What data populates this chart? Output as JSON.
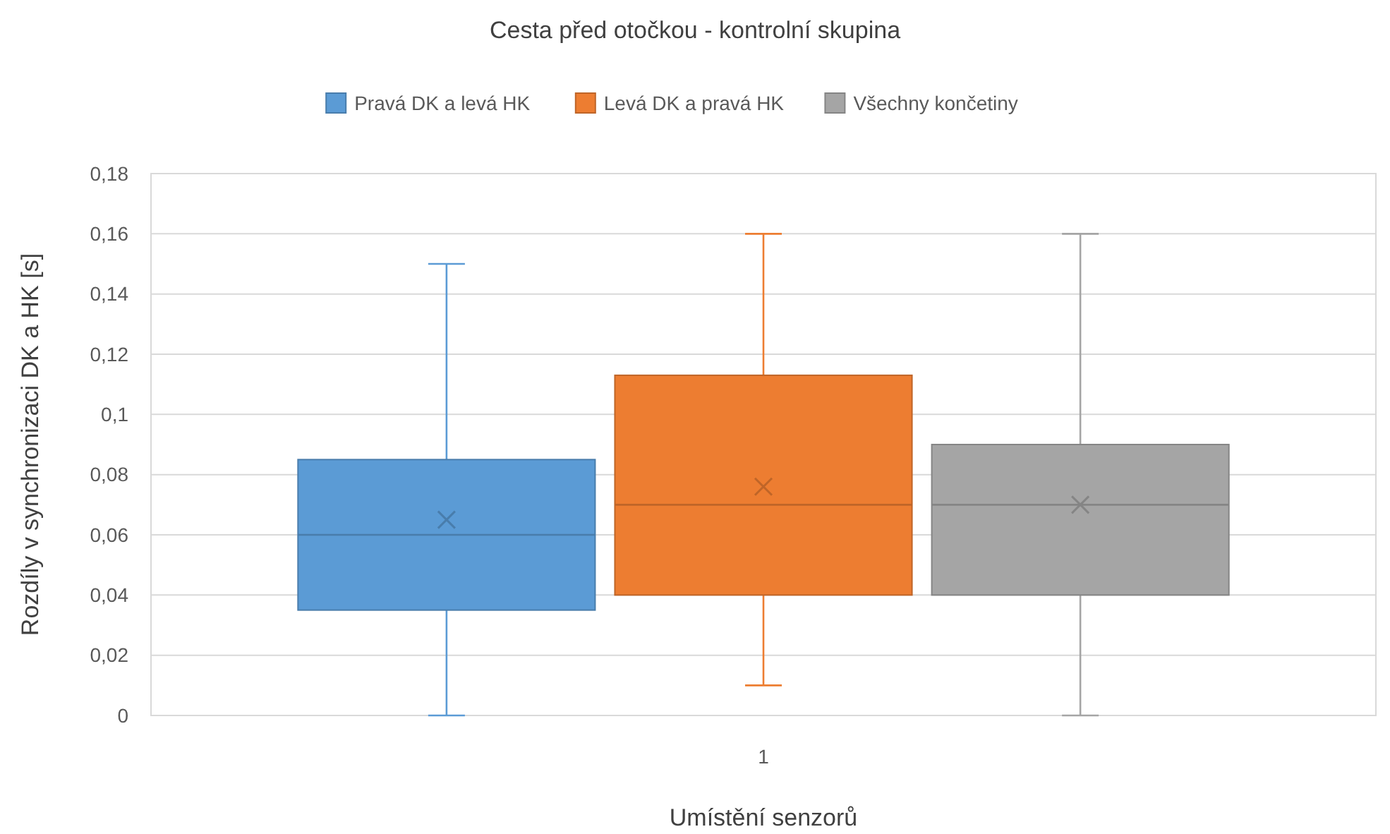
{
  "chart_data": {
    "type": "box",
    "title": "Cesta před otočkou - kontrolní skupina",
    "xlabel": "Umístění senzorů",
    "ylabel": "Rozdíly v synchronizaci DK a HK [s]",
    "categories": [
      "1"
    ],
    "series": [
      {
        "name": "Pravá DK a levá HK",
        "color": "#5b9bd5",
        "boxes": [
          {
            "low": 0,
            "q1": 0.035,
            "median": 0.06,
            "q3": 0.085,
            "high": 0.15,
            "mean": 0.065
          }
        ]
      },
      {
        "name": "Levá DK a pravá HK",
        "color": "#ed7d31",
        "boxes": [
          {
            "low": 0.01,
            "q1": 0.04,
            "median": 0.07,
            "q3": 0.113,
            "high": 0.16,
            "mean": 0.076
          }
        ]
      },
      {
        "name": "Všechny končetiny",
        "color": "#a5a5a5",
        "boxes": [
          {
            "low": 0,
            "q1": 0.04,
            "median": 0.07,
            "q3": 0.09,
            "high": 0.16,
            "mean": 0.07
          }
        ]
      }
    ],
    "ylim": [
      0,
      0.18
    ],
    "yticks": [
      0,
      {
        "value": 0.02,
        "label": "0,02"
      },
      {
        "value": 0.04,
        "label": "0,04"
      },
      {
        "value": 0.06,
        "label": "0,06"
      },
      {
        "value": 0.08,
        "label": "0,08"
      },
      {
        "value": 0.1,
        "label": "0,1"
      },
      {
        "value": 0.12,
        "label": "0,12"
      },
      {
        "value": 0.14,
        "label": "0,14"
      },
      {
        "value": 0.16,
        "label": "0,16"
      },
      {
        "value": 0.18,
        "label": "0,18"
      }
    ],
    "grid": "y",
    "legend": "top",
    "marker": "cross"
  }
}
